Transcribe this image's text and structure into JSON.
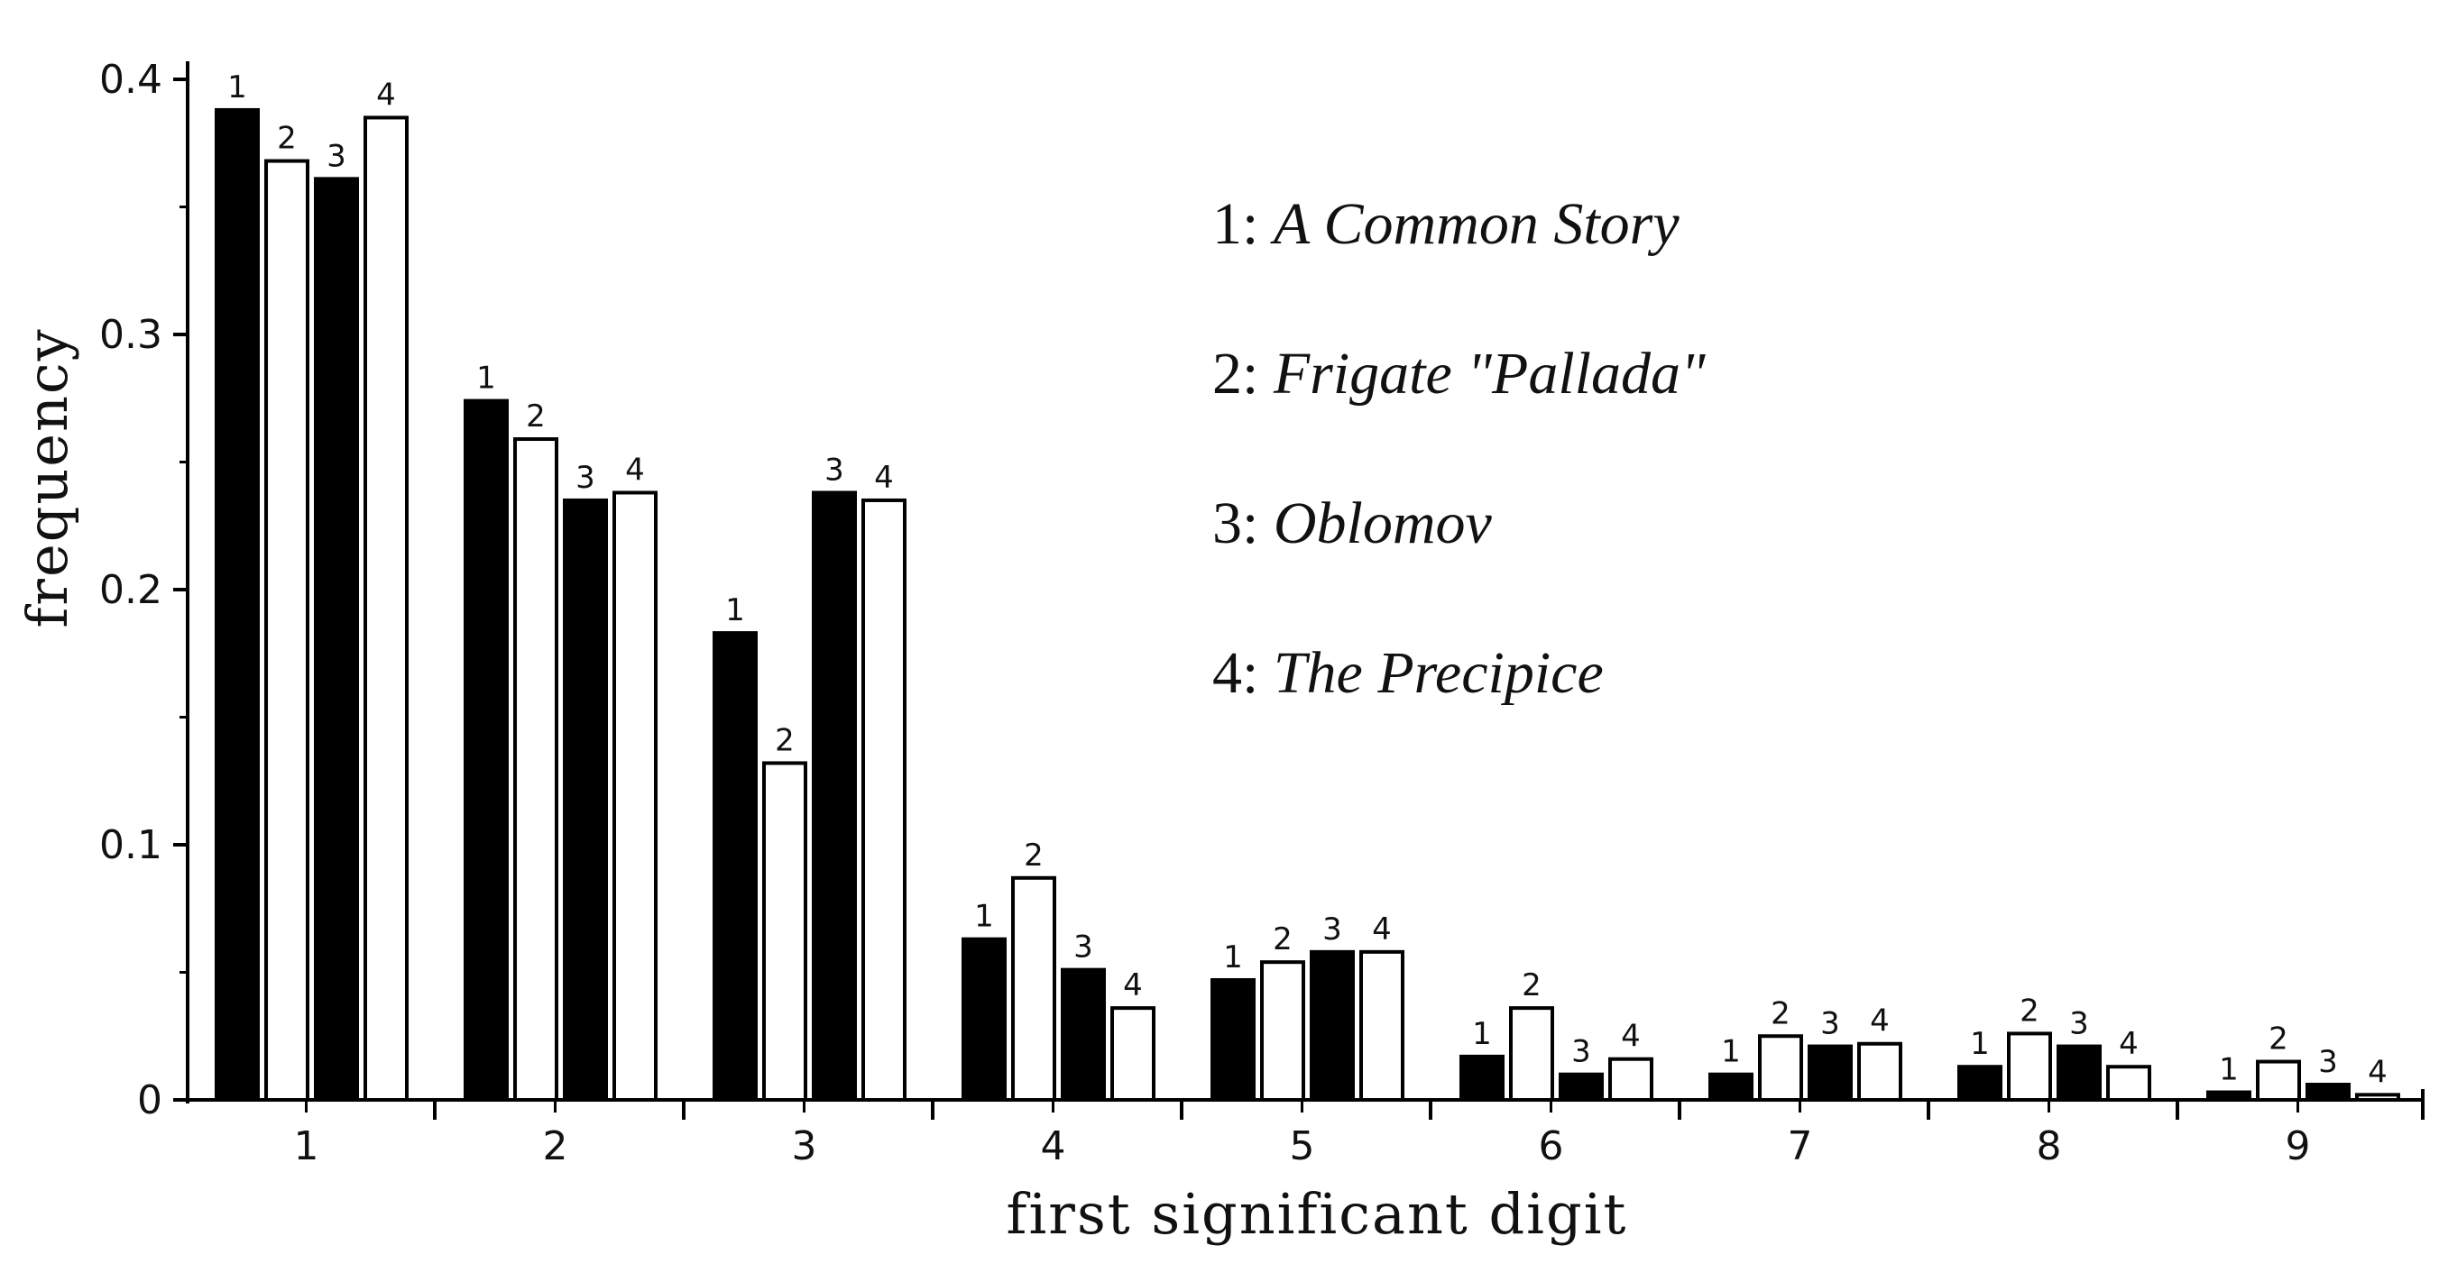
{
  "chart_data": {
    "type": "bar",
    "categories": [
      "1",
      "2",
      "3",
      "4",
      "5",
      "6",
      "7",
      "8",
      "9"
    ],
    "series": [
      {
        "name": "A Common Story",
        "legend_number": "1",
        "color": "#000000",
        "values": [
          0.388,
          0.274,
          0.183,
          0.063,
          0.047,
          0.017,
          0.01,
          0.013,
          0.003
        ]
      },
      {
        "name": "Frigate \"Pallada\"",
        "legend_number": "2",
        "color": "#ffffff",
        "values": [
          0.368,
          0.259,
          0.132,
          0.087,
          0.054,
          0.036,
          0.025,
          0.026,
          0.015
        ]
      },
      {
        "name": "Oblomov",
        "legend_number": "3",
        "color": "#000000",
        "values": [
          0.361,
          0.235,
          0.238,
          0.051,
          0.058,
          0.01,
          0.021,
          0.021,
          0.006
        ]
      },
      {
        "name": "The Precipice",
        "legend_number": "4",
        "color": "#ffffff",
        "values": [
          0.385,
          0.238,
          0.235,
          0.036,
          0.058,
          0.016,
          0.022,
          0.013,
          0.002
        ]
      }
    ],
    "bar_labels": [
      "1",
      "2",
      "3",
      "4"
    ],
    "xlabel": "first significant digit",
    "ylabel": "frequency",
    "ylim": [
      0,
      0.4
    ],
    "yticks": [
      "0",
      "0.1",
      "0.2",
      "0.3",
      "0.4"
    ],
    "legend": {
      "placement": "top-right",
      "items": [
        {
          "prefix": "1: ",
          "title": "A Common Story"
        },
        {
          "prefix": "2: ",
          "title": "Frigate \"Pallada\""
        },
        {
          "prefix": "3: ",
          "title": "Oblomov"
        },
        {
          "prefix": "4: ",
          "title": "The Precipice"
        }
      ]
    },
    "grid": false
  }
}
